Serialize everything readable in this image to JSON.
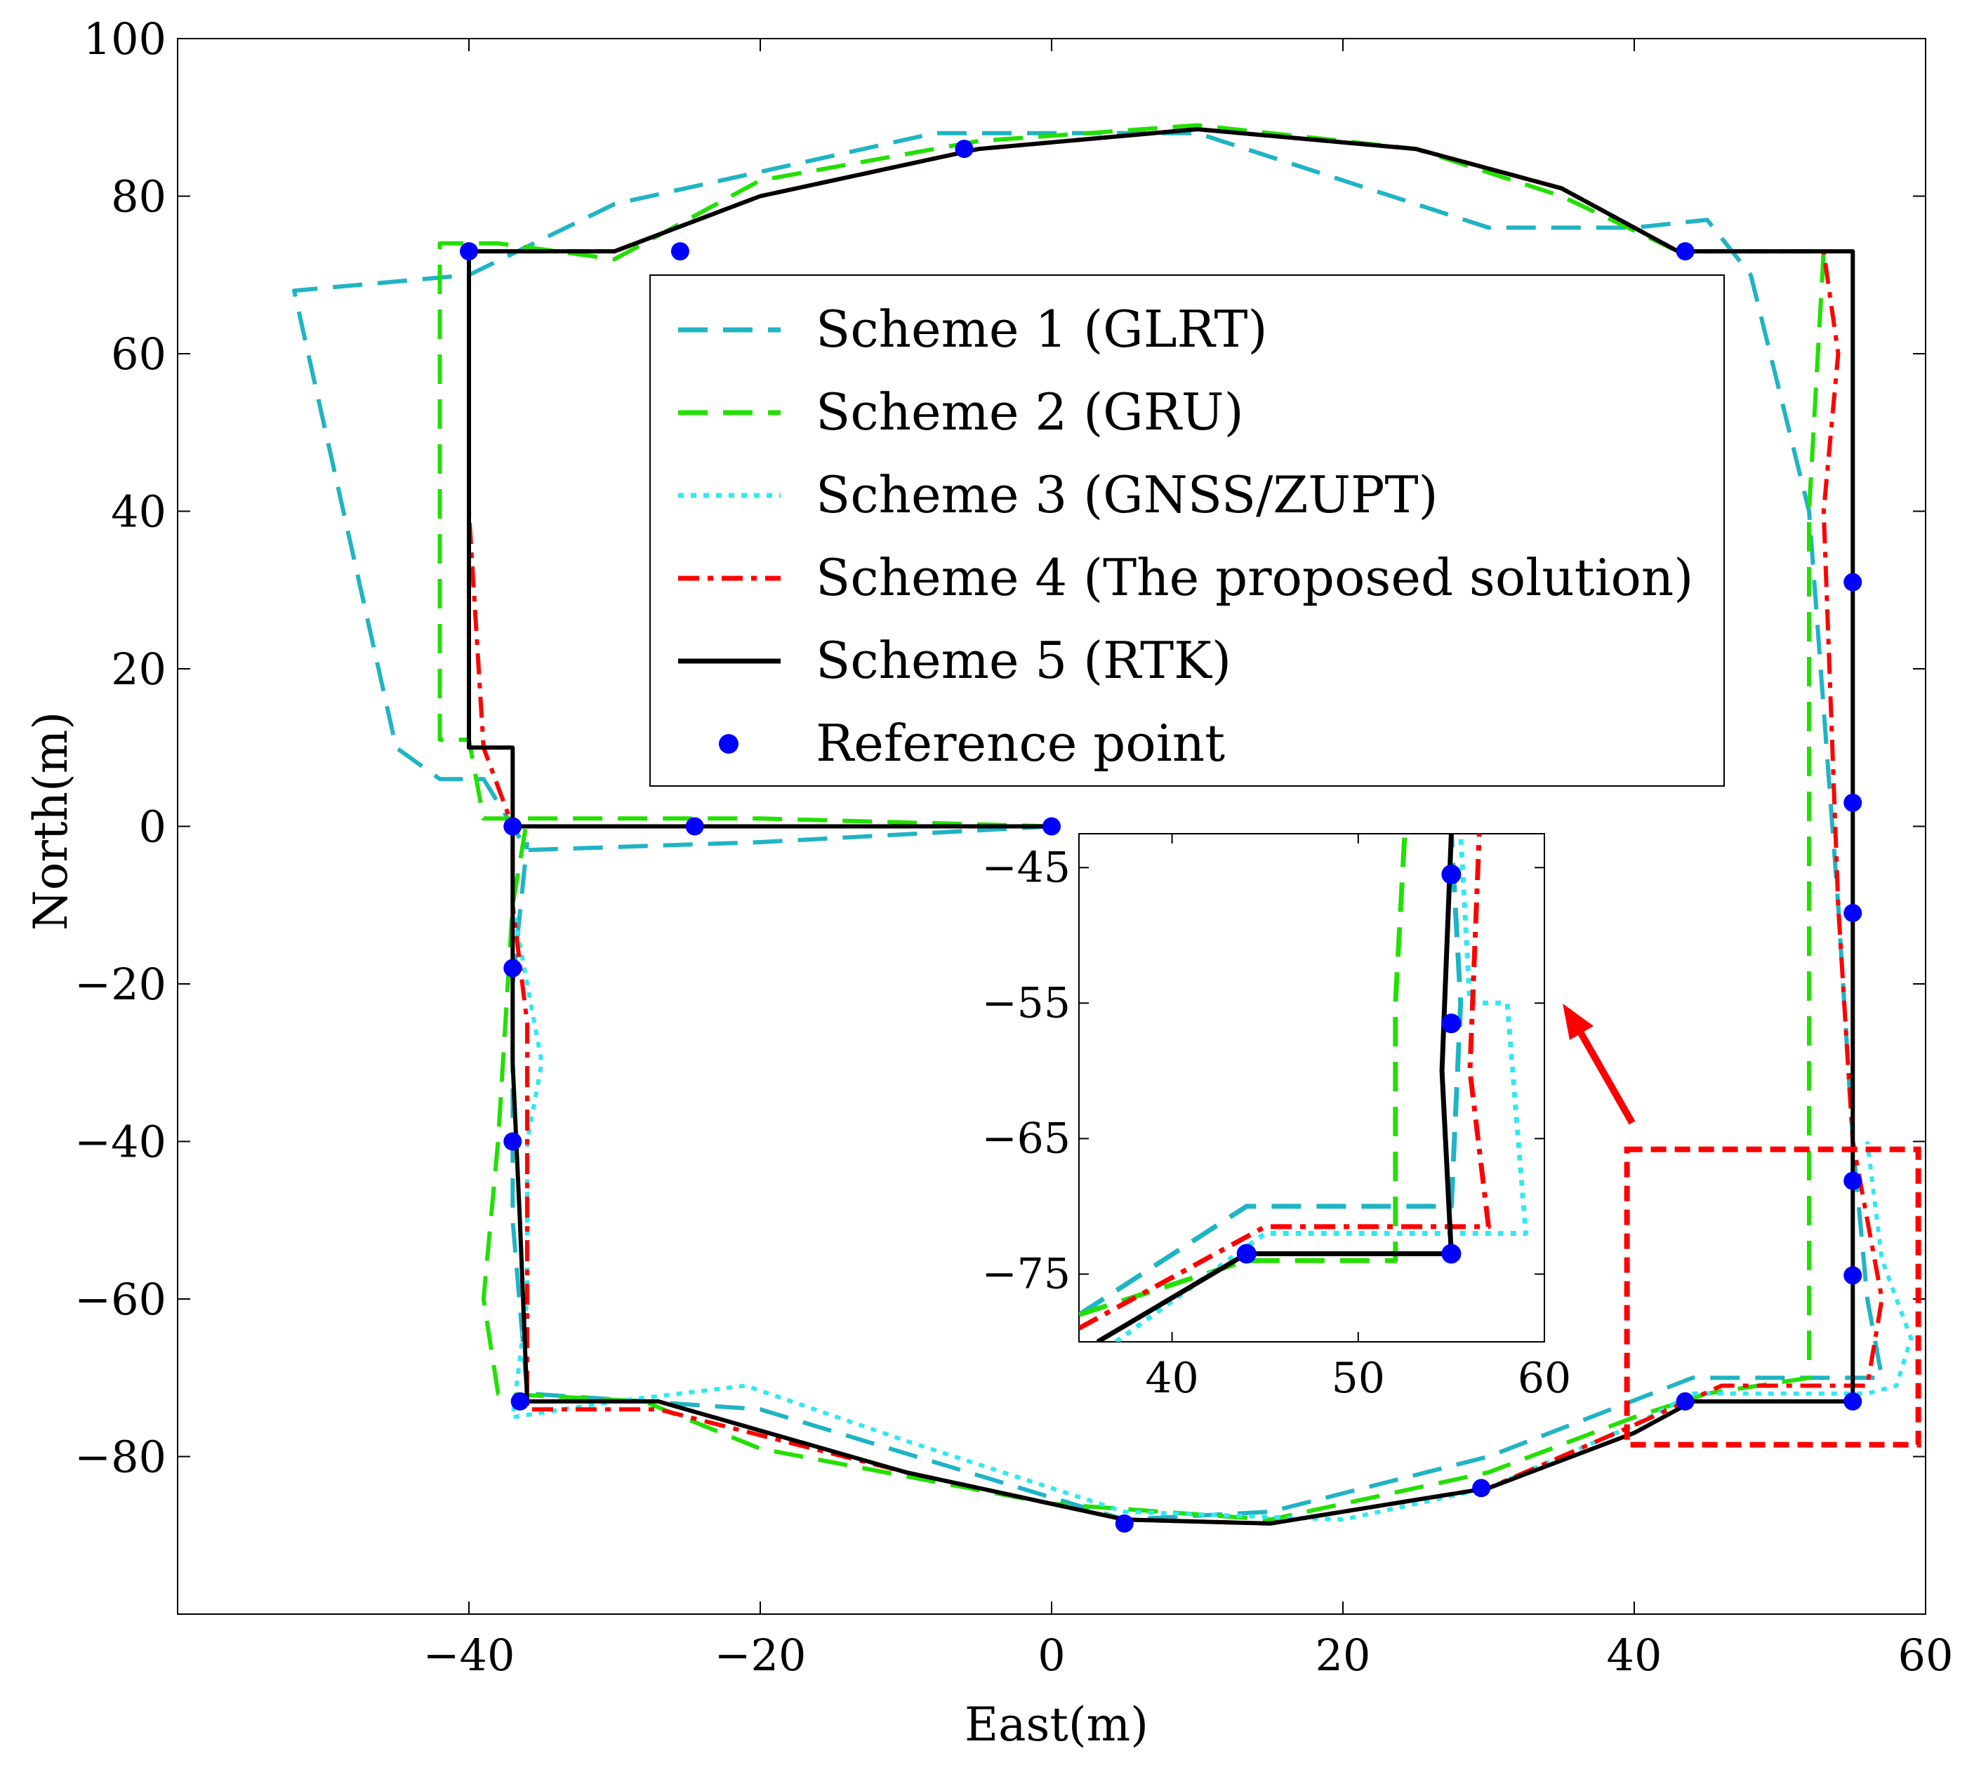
{
  "chart_data": {
    "type": "line",
    "title": "",
    "xlabel": "East(m)",
    "ylabel": "North(m)",
    "xlim": [
      -60,
      60
    ],
    "ylim": [
      -100,
      100
    ],
    "xticks": [
      -40,
      -20,
      0,
      20,
      40,
      60
    ],
    "yticks": [
      100,
      80,
      60,
      40,
      20,
      0,
      -20,
      -40,
      -60,
      -80
    ],
    "xtick_labels": [
      "−40",
      "−20",
      "0",
      "20",
      "40",
      "60"
    ],
    "ytick_labels": [
      "100",
      "80",
      "60",
      "40",
      "20",
      "0",
      "−20",
      "−40",
      "−60",
      "−80"
    ],
    "legend_position": "center",
    "series": [
      {
        "name": "Scheme 1 (GLRT)",
        "color": "#1fb4c4",
        "style": "dashed",
        "points": [
          [
            0,
            0
          ],
          [
            -20,
            -2
          ],
          [
            -36,
            -3
          ],
          [
            -39,
            6
          ],
          [
            -42,
            6
          ],
          [
            -45,
            10
          ],
          [
            -52,
            68
          ],
          [
            -40,
            70
          ],
          [
            -30,
            79
          ],
          [
            -8,
            88
          ],
          [
            10,
            88
          ],
          [
            30,
            76
          ],
          [
            40,
            76
          ],
          [
            45,
            77
          ],
          [
            48,
            70
          ],
          [
            52,
            40
          ],
          [
            54,
            -10
          ],
          [
            55,
            -40
          ],
          [
            56,
            -60
          ],
          [
            57,
            -70
          ],
          [
            52,
            -70
          ],
          [
            44,
            -70
          ],
          [
            30,
            -80
          ],
          [
            15,
            -87
          ],
          [
            5,
            -88
          ],
          [
            -20,
            -74
          ],
          [
            -28,
            -73
          ],
          [
            -36,
            -72
          ],
          [
            -37,
            -50
          ],
          [
            -37,
            -20
          ],
          [
            -36,
            -2
          ]
        ]
      },
      {
        "name": "Scheme 2 (GRU)",
        "color": "#22e000",
        "style": "dashed",
        "points": [
          [
            0,
            0
          ],
          [
            -20,
            1
          ],
          [
            -39,
            1
          ],
          [
            -40,
            11
          ],
          [
            -42,
            11
          ],
          [
            -42,
            74
          ],
          [
            -38,
            74
          ],
          [
            -30,
            72
          ],
          [
            -20,
            82
          ],
          [
            -5,
            87
          ],
          [
            10,
            89
          ],
          [
            25,
            86
          ],
          [
            35,
            80
          ],
          [
            43,
            73
          ],
          [
            53,
            73
          ],
          [
            52,
            40
          ],
          [
            52,
            -20
          ],
          [
            52,
            -55
          ],
          [
            52,
            -70
          ],
          [
            45,
            -72
          ],
          [
            40,
            -75
          ],
          [
            30,
            -82
          ],
          [
            15,
            -88
          ],
          [
            0,
            -86
          ],
          [
            -20,
            -79
          ],
          [
            -28,
            -73
          ],
          [
            -38,
            -72
          ],
          [
            -39,
            -60
          ],
          [
            -38,
            -40
          ],
          [
            -37,
            -10
          ],
          [
            -36,
            1
          ]
        ]
      },
      {
        "name": "Scheme 3 (GNSS/ZUPT)",
        "color": "#30e8f2",
        "style": "dotted",
        "points": [
          [
            -37,
            -2
          ],
          [
            -37,
            -10
          ],
          [
            -36,
            -20
          ],
          [
            -35,
            -30
          ],
          [
            -36,
            -40
          ],
          [
            -36,
            -60
          ],
          [
            -37,
            -75
          ],
          [
            -30,
            -73
          ],
          [
            -21,
            -71
          ],
          [
            -10,
            -78
          ],
          [
            5,
            -87
          ],
          [
            20,
            -88
          ],
          [
            30,
            -84
          ],
          [
            40,
            -76
          ],
          [
            44,
            -72
          ],
          [
            52,
            -72
          ],
          [
            56,
            -72
          ],
          [
            58,
            -71
          ],
          [
            59,
            -65
          ],
          [
            57,
            -55
          ],
          [
            56,
            -40
          ]
        ]
      },
      {
        "name": "Scheme 4 (The proposed solution)",
        "color": "#ff0000",
        "style": "dashdot",
        "points": [
          [
            0,
            0
          ],
          [
            -20,
            0
          ],
          [
            -37,
            0
          ],
          [
            -39,
            10
          ],
          [
            -40,
            40
          ],
          [
            -40,
            73
          ],
          [
            -30,
            73
          ],
          [
            -20,
            80
          ],
          [
            -5,
            86
          ],
          [
            10,
            88.5
          ],
          [
            25,
            86
          ],
          [
            35,
            81
          ],
          [
            43,
            73
          ],
          [
            53,
            73
          ],
          [
            54,
            60
          ],
          [
            53,
            40
          ],
          [
            54,
            -10
          ],
          [
            55,
            -40
          ],
          [
            57,
            -60
          ],
          [
            56,
            -71
          ],
          [
            46,
            -71
          ],
          [
            40,
            -76
          ],
          [
            30,
            -84
          ],
          [
            15,
            -88.5
          ],
          [
            5,
            -88
          ],
          [
            -10,
            -82
          ],
          [
            -27,
            -74
          ],
          [
            -36,
            -74
          ],
          [
            -36,
            -50
          ],
          [
            -36,
            -25
          ],
          [
            -37,
            -10
          ],
          [
            -37,
            -1
          ]
        ]
      },
      {
        "name": "Scheme 5 (RTK)",
        "color": "#000000",
        "style": "solid",
        "points": [
          [
            0,
            0
          ],
          [
            -20,
            0
          ],
          [
            -37,
            0
          ],
          [
            -37,
            10
          ],
          [
            -40,
            10
          ],
          [
            -40,
            40
          ],
          [
            -40,
            73
          ],
          [
            -30,
            73
          ],
          [
            -20,
            80
          ],
          [
            -5,
            86
          ],
          [
            10,
            88.5
          ],
          [
            25,
            86
          ],
          [
            35,
            81
          ],
          [
            43,
            73
          ],
          [
            55,
            73
          ],
          [
            55,
            30
          ],
          [
            55,
            -10
          ],
          [
            55,
            -40
          ],
          [
            55,
            -60
          ],
          [
            55,
            -73
          ],
          [
            44,
            -73
          ],
          [
            40,
            -77
          ],
          [
            30,
            -84
          ],
          [
            15,
            -88.5
          ],
          [
            5,
            -88
          ],
          [
            -10,
            -82
          ],
          [
            -27,
            -73
          ],
          [
            -36,
            -73
          ],
          [
            -36.5,
            -50
          ],
          [
            -37,
            -30
          ],
          [
            -37,
            -20
          ],
          [
            -37,
            0
          ]
        ]
      }
    ],
    "reference_points": {
      "name": "Reference point",
      "color": "#0000ff",
      "points": [
        [
          0,
          0
        ],
        [
          -24.5,
          0
        ],
        [
          -37,
          0
        ],
        [
          -40,
          73
        ],
        [
          -25.5,
          73
        ],
        [
          -6,
          86
        ],
        [
          43.5,
          73
        ],
        [
          55,
          31
        ],
        [
          55,
          3
        ],
        [
          55,
          -11
        ],
        [
          55,
          -45
        ],
        [
          55,
          -57
        ],
        [
          55,
          -73
        ],
        [
          43.5,
          -73
        ],
        [
          29.5,
          -84
        ],
        [
          5,
          -88.5
        ],
        [
          -36.5,
          -73
        ],
        [
          -37,
          -40
        ],
        [
          -37,
          -18
        ]
      ]
    },
    "highlight_box": {
      "xlim": [
        39.5,
        59.5
      ],
      "ylim": [
        -78.5,
        -41
      ]
    },
    "inset": {
      "xlim": [
        35,
        60
      ],
      "ylim": [
        -80,
        -42.5
      ],
      "xticks": [
        40,
        50,
        60
      ],
      "yticks": [
        -45,
        -55,
        -65,
        -75
      ],
      "xtick_labels": [
        "40",
        "50",
        "60"
      ],
      "ytick_labels": [
        "−45",
        "−55",
        "−65",
        "−75"
      ],
      "series": [
        {
          "name": "Scheme 1 (GLRT)",
          "color": "#1fb4c4",
          "style": "dashed",
          "points": [
            [
              35,
              -78
            ],
            [
              44,
              -70
            ],
            [
              55,
              -70
            ],
            [
              55.5,
              -55
            ],
            [
              55,
              -42.5
            ]
          ]
        },
        {
          "name": "Scheme 2 (GRU)",
          "color": "#22e000",
          "style": "dashed",
          "points": [
            [
              35,
              -78
            ],
            [
              44,
              -74
            ],
            [
              52,
              -74
            ],
            [
              52,
              -55
            ],
            [
              52.5,
              -42.5
            ]
          ]
        },
        {
          "name": "Scheme 3 (GNSS/ZUPT)",
          "color": "#30e8f2",
          "style": "dotted",
          "points": [
            [
              37,
              -80
            ],
            [
              45,
              -72
            ],
            [
              59,
              -72
            ],
            [
              58,
              -55
            ],
            [
              56,
              -55
            ],
            [
              55.5,
              -42.5
            ]
          ]
        },
        {
          "name": "Scheme 4 (The proposed solution)",
          "color": "#ff0000",
          "style": "dashdot",
          "points": [
            [
              35,
              -79
            ],
            [
              45,
              -71.5
            ],
            [
              57,
              -71.5
            ],
            [
              56,
              -60
            ],
            [
              56.5,
              -42.5
            ]
          ]
        },
        {
          "name": "Scheme 5 (RTK)",
          "color": "#000000",
          "style": "solid",
          "points": [
            [
              36,
              -80
            ],
            [
              44,
              -73.5
            ],
            [
              55,
              -73.5
            ],
            [
              54.5,
              -60
            ],
            [
              55,
              -42.5
            ]
          ]
        }
      ],
      "reference_points": [
        [
          44,
          -73.5
        ],
        [
          55,
          -73.5
        ],
        [
          55,
          -56.5
        ],
        [
          55,
          -45.5
        ]
      ]
    }
  }
}
